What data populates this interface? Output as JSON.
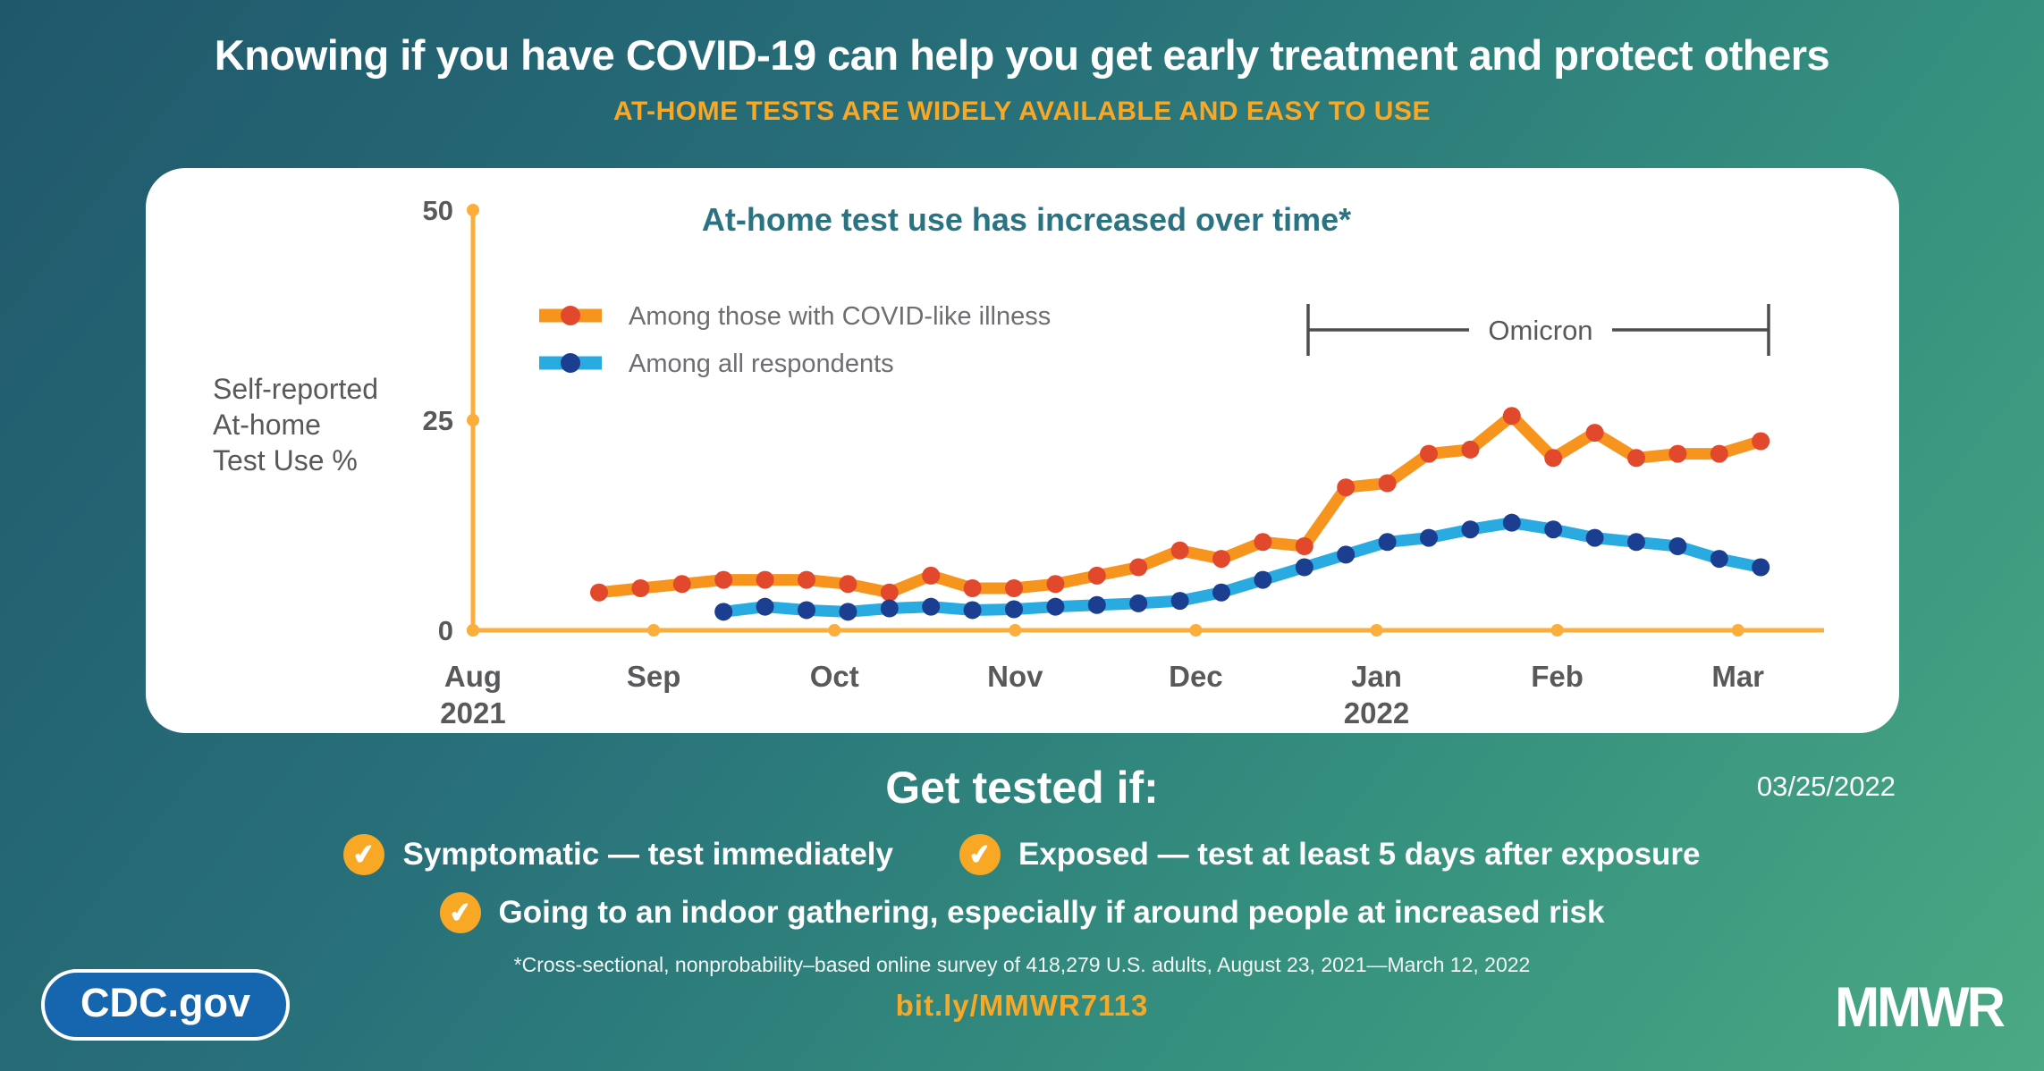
{
  "header": {
    "title": "Knowing if you have COVID-19 can help you get early treatment and protect others",
    "subtitle": "AT-HOME TESTS ARE WIDELY AVAILABLE AND EASY TO USE"
  },
  "chart": {
    "title": "At-home test use has increased over time*",
    "y_axis_label_lines": [
      "Self-reported",
      "At-home",
      "Test Use %"
    ],
    "y_ticks": [
      "0",
      "25",
      "50"
    ],
    "x_ticks": [
      {
        "label": "Aug",
        "sub": "2021"
      },
      {
        "label": "Sep",
        "sub": ""
      },
      {
        "label": "Oct",
        "sub": ""
      },
      {
        "label": "Nov",
        "sub": ""
      },
      {
        "label": "Dec",
        "sub": ""
      },
      {
        "label": "Jan",
        "sub": "2022"
      },
      {
        "label": "Feb",
        "sub": ""
      },
      {
        "label": "Mar",
        "sub": ""
      }
    ],
    "legend": [
      {
        "label": "Among those with COVID-like illness",
        "line_color": "#F7941E",
        "dot_color": "#E2492C"
      },
      {
        "label": "Among all respondents",
        "line_color": "#29ABE2",
        "dot_color": "#1C3E91"
      }
    ],
    "annotation": {
      "label": "Omicron"
    }
  },
  "chart_data": {
    "type": "line",
    "title": "At-home test use has increased over time*",
    "ylabel": "Self-reported At-home Test Use %",
    "ylim": [
      0,
      50
    ],
    "x_unit": "week",
    "x_range": "August 2021 - March 2022",
    "categories_months": [
      "Aug 2021",
      "Sep",
      "Oct",
      "Nov",
      "Dec",
      "Jan 2022",
      "Feb",
      "Mar"
    ],
    "series": [
      {
        "name": "Among those with COVID-like illness",
        "start_week_index": 0,
        "values": [
          4.5,
          5.0,
          5.5,
          6.0,
          6.0,
          6.0,
          5.5,
          4.5,
          6.5,
          5.0,
          5.0,
          5.5,
          6.5,
          7.5,
          9.5,
          8.5,
          10.5,
          10.0,
          17.0,
          17.5,
          21.0,
          21.5,
          25.5,
          20.5,
          23.5,
          20.5,
          21.0,
          21.0,
          22.5
        ]
      },
      {
        "name": "Among all respondents",
        "start_week_index": 3,
        "values": [
          2.2,
          2.8,
          2.4,
          2.2,
          2.6,
          2.8,
          2.4,
          2.5,
          2.8,
          3.0,
          3.2,
          3.5,
          4.5,
          6.0,
          7.5,
          9.0,
          10.5,
          11.0,
          12.0,
          12.8,
          12.0,
          11.0,
          10.5,
          10.0,
          8.5,
          7.5
        ]
      }
    ],
    "annotations": [
      {
        "label": "Omicron",
        "span": "mid-December 2021 through March 2022"
      }
    ],
    "legend_position": "upper-left",
    "grid": false
  },
  "get_tested": {
    "heading": "Get tested if:",
    "date": "03/25/2022",
    "bullets": [
      "Symptomatic — test immediately",
      "Exposed — test at least 5 days after exposure",
      "Going to an indoor gathering, especially if around people at increased risk"
    ],
    "check_icon": "check-in-circle"
  },
  "footer": {
    "footnote": "*Cross-sectional, nonprobability–based online survey of 418,279 U.S. adults, August 23, 2021—March 12, 2022",
    "link": "bit.ly/MMWR7113",
    "cdc_logo": "CDC.gov",
    "mmwr_logo": "MMWR"
  },
  "colors": {
    "background_top": "#20586B",
    "background_bottom": "#4BA983",
    "accent_orange": "#F9A825",
    "axis_amber": "#FBAE3C",
    "series_illness_line": "#F7941E",
    "series_illness_dot": "#E2492C",
    "series_all_line": "#29ABE2",
    "series_all_dot": "#1C3E91",
    "chart_title_teal": "#2A7383",
    "gray_text": "#58595B",
    "bracket_gray": "#4D4D4D",
    "cdc_pill_blue": "#1565AF"
  }
}
